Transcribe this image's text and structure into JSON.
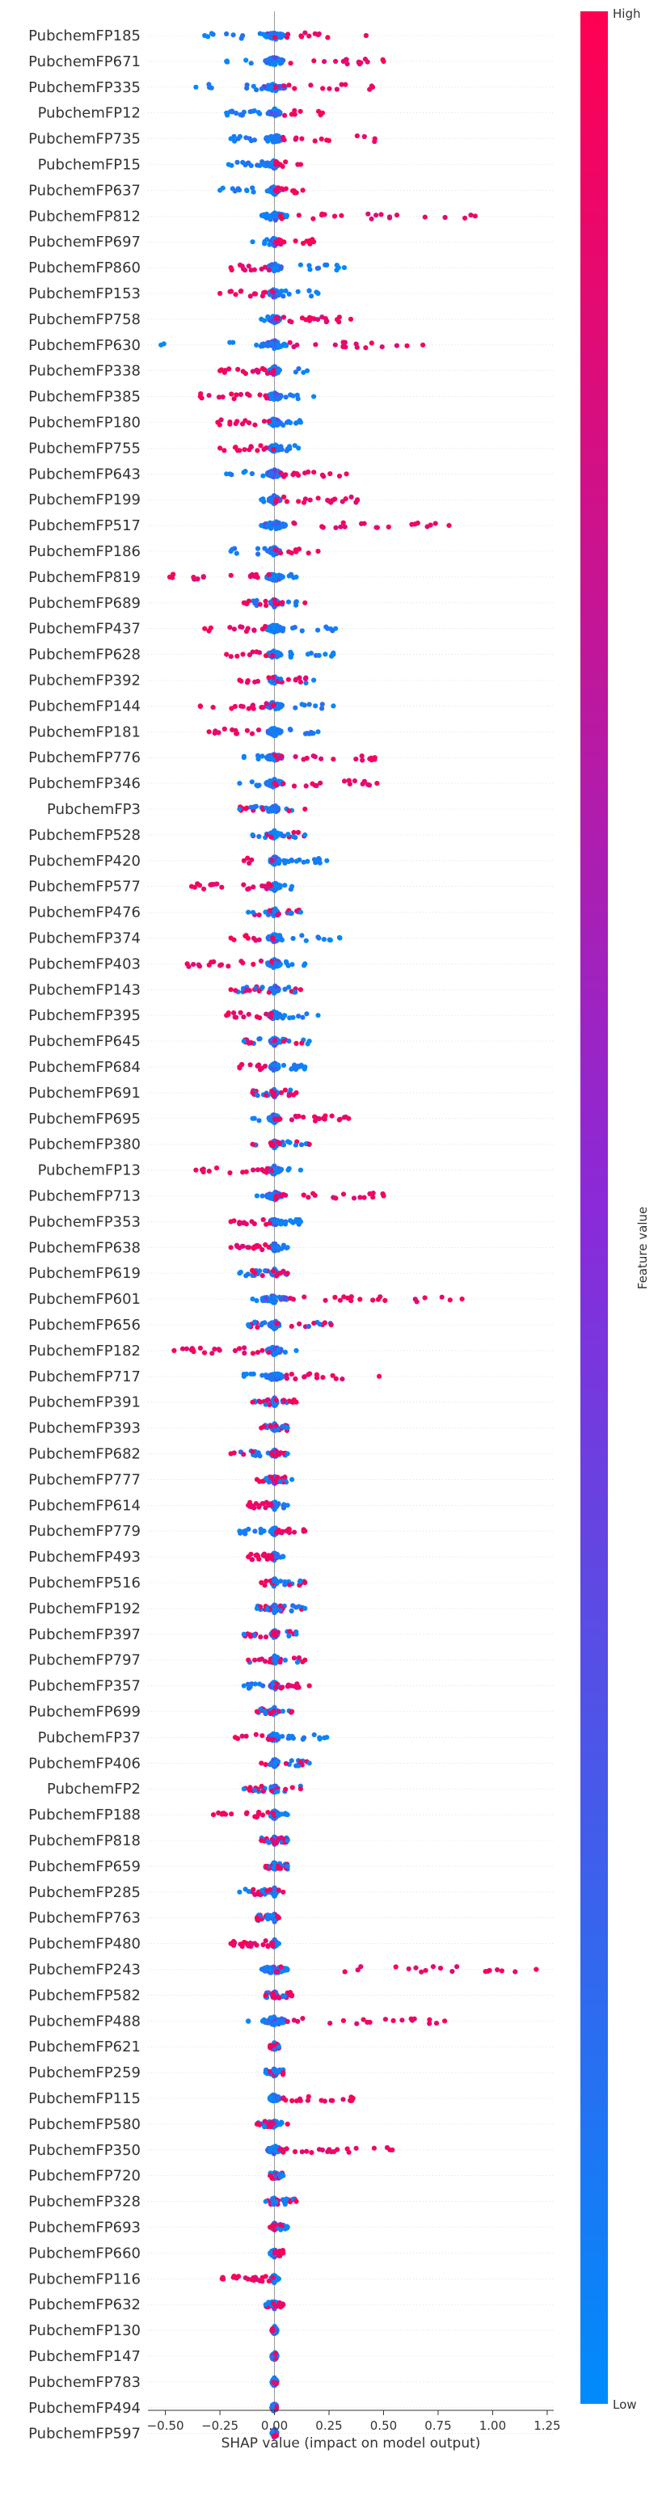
{
  "chart_data": {
    "type": "scatter",
    "subtype": "shap-beeswarm-summary",
    "xlabel": "SHAP value (impact on model output)",
    "ylabel": "",
    "xlim": [
      -0.58,
      1.28
    ],
    "x_ticks": [
      -0.5,
      -0.25,
      0.0,
      0.25,
      0.5,
      0.75,
      1.0,
      1.25
    ],
    "x_tick_labels": [
      "−0.50",
      "−0.25",
      "0.00",
      "0.25",
      "0.50",
      "0.75",
      "1.00",
      "1.25"
    ],
    "grid": false,
    "colorbar": {
      "label": "Feature value",
      "high_label": "High",
      "low_label": "Low",
      "low_color": "#008bfb",
      "high_color": "#ff0052"
    },
    "features": [
      {
        "name": "PubchemFP185",
        "lo": -0.32,
        "hi": 0.42,
        "pos": "right"
      },
      {
        "name": "PubchemFP671",
        "lo": -0.22,
        "hi": 0.5,
        "pos": "right"
      },
      {
        "name": "PubchemFP335",
        "lo": -0.36,
        "hi": 0.45,
        "pos": "right"
      },
      {
        "name": "PubchemFP12",
        "lo": -0.22,
        "hi": 0.22,
        "pos": "right"
      },
      {
        "name": "PubchemFP735",
        "lo": -0.2,
        "hi": 0.46,
        "pos": "right"
      },
      {
        "name": "PubchemFP15",
        "lo": -0.21,
        "hi": 0.12,
        "pos": "right"
      },
      {
        "name": "PubchemFP637",
        "lo": -0.25,
        "hi": 0.13,
        "pos": "right"
      },
      {
        "name": "PubchemFP812",
        "lo": -0.05,
        "hi": 0.92,
        "pos": "right"
      },
      {
        "name": "PubchemFP697",
        "lo": -0.1,
        "hi": 0.18,
        "pos": "right"
      },
      {
        "name": "PubchemFP860",
        "lo": -0.2,
        "hi": 0.32,
        "pos": "left"
      },
      {
        "name": "PubchemFP153",
        "lo": -0.25,
        "hi": 0.2,
        "pos": "left"
      },
      {
        "name": "PubchemFP758",
        "lo": -0.06,
        "hi": 0.35,
        "pos": "right"
      },
      {
        "name": "PubchemFP630",
        "lo": -0.52,
        "hi": 0.68,
        "pos": "right"
      },
      {
        "name": "PubchemFP338",
        "lo": -0.25,
        "hi": 0.15,
        "pos": "left"
      },
      {
        "name": "PubchemFP385",
        "lo": -0.34,
        "hi": 0.18,
        "pos": "left"
      },
      {
        "name": "PubchemFP180",
        "lo": -0.26,
        "hi": 0.12,
        "pos": "left"
      },
      {
        "name": "PubchemFP755",
        "lo": -0.25,
        "hi": 0.11,
        "pos": "left"
      },
      {
        "name": "PubchemFP643",
        "lo": -0.22,
        "hi": 0.33,
        "pos": "right"
      },
      {
        "name": "PubchemFP199",
        "lo": -0.06,
        "hi": 0.38,
        "pos": "right"
      },
      {
        "name": "PubchemFP517",
        "lo": -0.06,
        "hi": 0.8,
        "pos": "right"
      },
      {
        "name": "PubchemFP186",
        "lo": -0.2,
        "hi": 0.2,
        "pos": "right"
      },
      {
        "name": "PubchemFP819",
        "lo": -0.48,
        "hi": 0.1,
        "pos": "left"
      },
      {
        "name": "PubchemFP689",
        "lo": -0.14,
        "hi": 0.14,
        "pos": "mixed"
      },
      {
        "name": "PubchemFP437",
        "lo": -0.32,
        "hi": 0.28,
        "pos": "left"
      },
      {
        "name": "PubchemFP628",
        "lo": -0.22,
        "hi": 0.27,
        "pos": "left"
      },
      {
        "name": "PubchemFP392",
        "lo": -0.16,
        "hi": 0.18,
        "pos": "mixed"
      },
      {
        "name": "PubchemFP144",
        "lo": -0.34,
        "hi": 0.27,
        "pos": "left"
      },
      {
        "name": "PubchemFP181",
        "lo": -0.3,
        "hi": 0.2,
        "pos": "left"
      },
      {
        "name": "PubchemFP776",
        "lo": -0.14,
        "hi": 0.46,
        "pos": "right"
      },
      {
        "name": "PubchemFP346",
        "lo": -0.16,
        "hi": 0.47,
        "pos": "right"
      },
      {
        "name": "PubchemFP3",
        "lo": -0.16,
        "hi": 0.14,
        "pos": "mixed"
      },
      {
        "name": "PubchemFP528",
        "lo": -0.1,
        "hi": 0.14,
        "pos": "mixed"
      },
      {
        "name": "PubchemFP420",
        "lo": -0.14,
        "hi": 0.24,
        "pos": "left"
      },
      {
        "name": "PubchemFP577",
        "lo": -0.38,
        "hi": 0.08,
        "pos": "left"
      },
      {
        "name": "PubchemFP476",
        "lo": -0.12,
        "hi": 0.12,
        "pos": "mixed"
      },
      {
        "name": "PubchemFP374",
        "lo": -0.2,
        "hi": 0.3,
        "pos": "left"
      },
      {
        "name": "PubchemFP403",
        "lo": -0.4,
        "hi": 0.14,
        "pos": "left"
      },
      {
        "name": "PubchemFP143",
        "lo": -0.2,
        "hi": 0.12,
        "pos": "mixed"
      },
      {
        "name": "PubchemFP395",
        "lo": -0.22,
        "hi": 0.2,
        "pos": "left"
      },
      {
        "name": "PubchemFP645",
        "lo": -0.14,
        "hi": 0.16,
        "pos": "mixed"
      },
      {
        "name": "PubchemFP684",
        "lo": -0.16,
        "hi": 0.14,
        "pos": "left"
      },
      {
        "name": "PubchemFP691",
        "lo": -0.1,
        "hi": 0.1,
        "pos": "mixed"
      },
      {
        "name": "PubchemFP695",
        "lo": -0.1,
        "hi": 0.34,
        "pos": "right"
      },
      {
        "name": "PubchemFP380",
        "lo": -0.1,
        "hi": 0.16,
        "pos": "mixed"
      },
      {
        "name": "PubchemFP13",
        "lo": -0.36,
        "hi": 0.12,
        "pos": "left"
      },
      {
        "name": "PubchemFP713",
        "lo": -0.08,
        "hi": 0.5,
        "pos": "right"
      },
      {
        "name": "PubchemFP353",
        "lo": -0.2,
        "hi": 0.12,
        "pos": "left"
      },
      {
        "name": "PubchemFP638",
        "lo": -0.2,
        "hi": 0.06,
        "pos": "left"
      },
      {
        "name": "PubchemFP619",
        "lo": -0.16,
        "hi": 0.06,
        "pos": "mixed"
      },
      {
        "name": "PubchemFP601",
        "lo": -0.1,
        "hi": 0.86,
        "pos": "right"
      },
      {
        "name": "PubchemFP656",
        "lo": -0.12,
        "hi": 0.26,
        "pos": "mixed"
      },
      {
        "name": "PubchemFP182",
        "lo": -0.46,
        "hi": 0.1,
        "pos": "left"
      },
      {
        "name": "PubchemFP717",
        "lo": -0.14,
        "hi": 0.48,
        "pos": "right"
      },
      {
        "name": "PubchemFP391",
        "lo": -0.1,
        "hi": 0.1,
        "pos": "mixed"
      },
      {
        "name": "PubchemFP393",
        "lo": -0.06,
        "hi": 0.06,
        "pos": "mixed"
      },
      {
        "name": "PubchemFP682",
        "lo": -0.2,
        "hi": 0.06,
        "pos": "mixed"
      },
      {
        "name": "PubchemFP777",
        "lo": -0.08,
        "hi": 0.08,
        "pos": "mixed"
      },
      {
        "name": "PubchemFP614",
        "lo": -0.12,
        "hi": 0.06,
        "pos": "left"
      },
      {
        "name": "PubchemFP779",
        "lo": -0.16,
        "hi": 0.14,
        "pos": "right"
      },
      {
        "name": "PubchemFP493",
        "lo": -0.12,
        "hi": 0.04,
        "pos": "left"
      },
      {
        "name": "PubchemFP516",
        "lo": -0.06,
        "hi": 0.14,
        "pos": "mixed"
      },
      {
        "name": "PubchemFP192",
        "lo": -0.08,
        "hi": 0.14,
        "pos": "mixed"
      },
      {
        "name": "PubchemFP397",
        "lo": -0.14,
        "hi": 0.1,
        "pos": "mixed"
      },
      {
        "name": "PubchemFP797",
        "lo": -0.12,
        "hi": 0.14,
        "pos": "mixed"
      },
      {
        "name": "PubchemFP357",
        "lo": -0.14,
        "hi": 0.16,
        "pos": "right"
      },
      {
        "name": "PubchemFP699",
        "lo": -0.08,
        "hi": 0.08,
        "pos": "mixed"
      },
      {
        "name": "PubchemFP37",
        "lo": -0.18,
        "hi": 0.24,
        "pos": "left"
      },
      {
        "name": "PubchemFP406",
        "lo": -0.06,
        "hi": 0.16,
        "pos": "mixed"
      },
      {
        "name": "PubchemFP2",
        "lo": -0.14,
        "hi": 0.12,
        "pos": "mixed"
      },
      {
        "name": "PubchemFP188",
        "lo": -0.28,
        "hi": 0.06,
        "pos": "left"
      },
      {
        "name": "PubchemFP818",
        "lo": -0.06,
        "hi": 0.06,
        "pos": "mixed"
      },
      {
        "name": "PubchemFP659",
        "lo": -0.04,
        "hi": 0.06,
        "pos": "mixed"
      },
      {
        "name": "PubchemFP285",
        "lo": -0.16,
        "hi": 0.04,
        "pos": "mixed"
      },
      {
        "name": "PubchemFP763",
        "lo": -0.08,
        "hi": 0.02,
        "pos": "mixed"
      },
      {
        "name": "PubchemFP480",
        "lo": -0.2,
        "hi": 0.02,
        "pos": "left"
      },
      {
        "name": "PubchemFP243",
        "lo": -0.02,
        "hi": 1.2,
        "pos": "right"
      },
      {
        "name": "PubchemFP582",
        "lo": -0.04,
        "hi": 0.08,
        "pos": "mixed"
      },
      {
        "name": "PubchemFP488",
        "lo": -0.12,
        "hi": 0.78,
        "pos": "right"
      },
      {
        "name": "PubchemFP621",
        "lo": -0.02,
        "hi": 0.02,
        "pos": "mixed"
      },
      {
        "name": "PubchemFP259",
        "lo": -0.04,
        "hi": 0.04,
        "pos": "mixed"
      },
      {
        "name": "PubchemFP115",
        "lo": -0.02,
        "hi": 0.36,
        "pos": "right"
      },
      {
        "name": "PubchemFP580",
        "lo": -0.08,
        "hi": 0.06,
        "pos": "mixed"
      },
      {
        "name": "PubchemFP350",
        "lo": -0.02,
        "hi": 0.54,
        "pos": "right"
      },
      {
        "name": "PubchemFP720",
        "lo": -0.02,
        "hi": 0.04,
        "pos": "mixed"
      },
      {
        "name": "PubchemFP328",
        "lo": -0.04,
        "hi": 0.1,
        "pos": "mixed"
      },
      {
        "name": "PubchemFP693",
        "lo": -0.02,
        "hi": 0.06,
        "pos": "mixed"
      },
      {
        "name": "PubchemFP660",
        "lo": -0.02,
        "hi": 0.04,
        "pos": "right"
      },
      {
        "name": "PubchemFP116",
        "lo": -0.24,
        "hi": 0.02,
        "pos": "left"
      },
      {
        "name": "PubchemFP632",
        "lo": -0.04,
        "hi": 0.04,
        "pos": "mixed"
      },
      {
        "name": "PubchemFP130",
        "lo": -0.01,
        "hi": 0.01,
        "pos": "mixed"
      },
      {
        "name": "PubchemFP147",
        "lo": -0.01,
        "hi": 0.01,
        "pos": "mixed"
      },
      {
        "name": "PubchemFP783",
        "lo": -0.01,
        "hi": 0.01,
        "pos": "mixed"
      },
      {
        "name": "PubchemFP494",
        "lo": -0.01,
        "hi": 0.01,
        "pos": "mixed"
      },
      {
        "name": "PubchemFP597",
        "lo": -0.01,
        "hi": 0.01,
        "pos": "mixed"
      }
    ]
  }
}
